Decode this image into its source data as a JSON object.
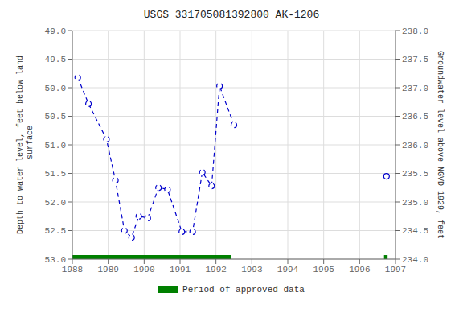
{
  "chart_data": {
    "type": "line",
    "title": "USGS 331705081392800 AK-1206",
    "y_label": "Depth to water level, feet below land\n surface",
    "y2_label": "Groundwater level above NGVD 1929, feet",
    "xlim": [
      1988,
      1997
    ],
    "xticks": [
      1988,
      1989,
      1990,
      1991,
      1992,
      1993,
      1994,
      1995,
      1996,
      1997
    ],
    "ylim": [
      53.0,
      49.0
    ],
    "yticks": [
      {
        "value": 49.0,
        "label": "49.0"
      },
      49.5,
      {
        "value": 50.0,
        "label": "50.0"
      },
      50.5,
      {
        "value": 51.0,
        "label": "51.0"
      },
      51.5,
      {
        "value": 52.0,
        "label": "52.0"
      },
      52.5,
      {
        "value": 53.0,
        "label": "53.0"
      }
    ],
    "y2lim": [
      234.0,
      238.0
    ],
    "y2ticks": [
      {
        "value": 234.0,
        "label": "234.0"
      },
      234.5,
      {
        "value": 235.0,
        "label": "235.0"
      },
      235.5,
      {
        "value": 236.0,
        "label": "236.0"
      },
      236.5,
      {
        "value": 237.0,
        "label": "237.0"
      },
      237.5,
      {
        "value": 238.0,
        "label": "238.0"
      }
    ],
    "grid": true,
    "legend": "bottom",
    "series": [
      {
        "color": "#0000CC",
        "marker": "circle",
        "line_style": "dashed",
        "x": [
          1988.15,
          1988.45,
          1988.95,
          1989.2,
          1989.45,
          1989.65,
          1989.85,
          1990.1,
          1990.4,
          1990.65,
          1991.05,
          1991.35,
          1991.62,
          1991.88,
          1992.1,
          1992.5
        ],
        "values": [
          49.82,
          50.28,
          50.9,
          51.62,
          52.5,
          52.62,
          52.25,
          52.28,
          51.75,
          51.78,
          52.52,
          52.52,
          51.48,
          51.72,
          49.97,
          50.65
        ]
      },
      {
        "color": "#0000CC",
        "marker": "circle",
        "line_style": "none",
        "x": [
          1996.75
        ],
        "values": [
          51.55
        ]
      }
    ],
    "periods": {
      "name": "Period of approved data",
      "color": "#008000",
      "y_range": [
        52.93,
        53.0
      ],
      "spans": [
        {
          "start": 1988.0,
          "end": 1992.42
        },
        {
          "start": 1996.68,
          "end": 1996.78
        }
      ]
    }
  }
}
